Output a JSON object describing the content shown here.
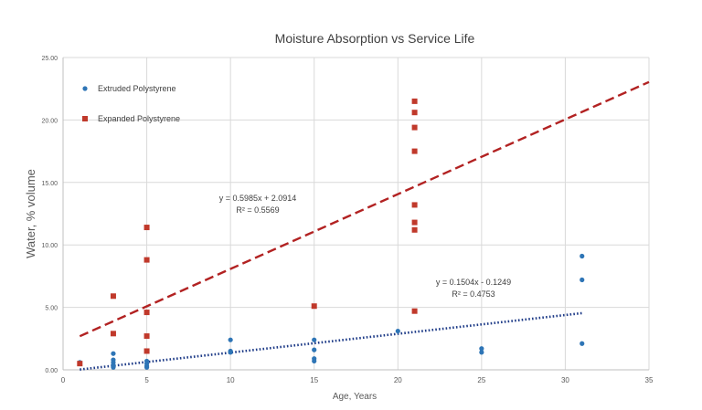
{
  "chart_data": {
    "type": "scatter",
    "title": "Moisture Absorption vs Service Life",
    "xlabel": "Age, Years",
    "ylabel": "Water, % volume",
    "xlim": [
      0,
      35
    ],
    "ylim": [
      0,
      25
    ],
    "xticks": [
      0,
      5,
      10,
      15,
      20,
      25,
      30,
      35
    ],
    "yticks": [
      0,
      5,
      10,
      15,
      20,
      25
    ],
    "xtick_labels": [
      "0",
      "5",
      "10",
      "15",
      "20",
      "25",
      "30",
      "35"
    ],
    "ytick_labels": [
      "0.00",
      "5.00",
      "10.00",
      "15.00",
      "20.00",
      "25.00"
    ],
    "grid": true,
    "legend_position": "top-left",
    "series": [
      {
        "name": "Extruded Polystyrene",
        "marker": "circle",
        "color": "#2e75b6",
        "points": [
          [
            1,
            0.6
          ],
          [
            1,
            0.5
          ],
          [
            3,
            1.3
          ],
          [
            3,
            0.8
          ],
          [
            3,
            0.6
          ],
          [
            3,
            0.4
          ],
          [
            3,
            0.2
          ],
          [
            5,
            1.5
          ],
          [
            5,
            0.7
          ],
          [
            5,
            0.5
          ],
          [
            5,
            0.3
          ],
          [
            5,
            0.2
          ],
          [
            10,
            2.4
          ],
          [
            10,
            1.5
          ],
          [
            10,
            1.4
          ],
          [
            15,
            2.4
          ],
          [
            15,
            1.6
          ],
          [
            15,
            0.9
          ],
          [
            15,
            0.7
          ],
          [
            20,
            3.1
          ],
          [
            25,
            1.7
          ],
          [
            25,
            1.4
          ],
          [
            31,
            9.1
          ],
          [
            31,
            7.2
          ],
          [
            31,
            2.1
          ]
        ],
        "trendline": {
          "style": "dotted",
          "color": "#1f3c88",
          "slope": 0.1504,
          "intercept": -0.1249,
          "x_range": [
            1,
            31
          ],
          "equation": "y = 0.1504x - 0.1249",
          "r_squared": "R² = 0.4753"
        }
      },
      {
        "name": "Expanded Polystyrene",
        "marker": "square",
        "color": "#c0392b",
        "points": [
          [
            1,
            0.5
          ],
          [
            3,
            5.9
          ],
          [
            3,
            2.9
          ],
          [
            5,
            11.4
          ],
          [
            5,
            8.8
          ],
          [
            5,
            4.6
          ],
          [
            5,
            2.7
          ],
          [
            5,
            1.5
          ],
          [
            15,
            5.1
          ],
          [
            21,
            21.5
          ],
          [
            21,
            20.6
          ],
          [
            21,
            19.4
          ],
          [
            21,
            17.5
          ],
          [
            21,
            13.2
          ],
          [
            21,
            11.8
          ],
          [
            21,
            11.2
          ],
          [
            21,
            4.7
          ]
        ],
        "trendline": {
          "style": "dashed",
          "color": "#b22222",
          "slope": 0.5985,
          "intercept": 2.0914,
          "x_range": [
            1,
            35
          ],
          "equation": "y = 0.5985x + 2.0914",
          "r_squared": "R² = 0.5569"
        }
      }
    ]
  }
}
